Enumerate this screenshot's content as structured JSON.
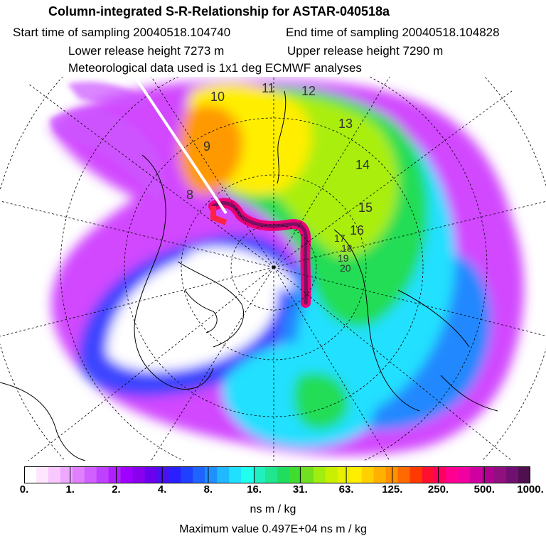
{
  "header": {
    "title": "Column-integrated S-R-Relationship for ASTAR-040518a",
    "start_time": "Start time of sampling 20040518.104740",
    "end_time": "End time of sampling 20040518.104828",
    "lower_release": "Lower release height 7273 m",
    "upper_release": "Upper release height 7290 m",
    "met_data": "Meteorological data used is 1x1 deg ECMWF analyses"
  },
  "map": {
    "trajectory_labels": [
      "8",
      "9",
      "10",
      "11",
      "12",
      "13",
      "14",
      "15",
      "16",
      "17",
      "18",
      "19",
      "20"
    ],
    "colors": {
      "white": "#ffffff",
      "violet": "#cc33ff",
      "purple": "#9900ff",
      "blue": "#2244ff",
      "cyan": "#22e0ff",
      "green": "#22dd55",
      "yellow": "#ffee00",
      "orange": "#ff9900",
      "red": "#ff2244",
      "magenta": "#ee0077",
      "dark_purple": "#7a1060"
    }
  },
  "colorbar": {
    "tick_labels": [
      "0.",
      "1.",
      "2.",
      "4.",
      "8.",
      "16.",
      "31.",
      "63.",
      "125.",
      "250.",
      "500.",
      "1000."
    ],
    "units": "ns m / kg",
    "colors": [
      "#ffffff",
      "#ffe6ff",
      "#f8c8ff",
      "#eea8ff",
      "#e080ff",
      "#d060ff",
      "#c040ff",
      "#b020ff",
      "#a000ff",
      "#8800ee",
      "#6a00ee",
      "#4a10f0",
      "#2a20ff",
      "#2040ff",
      "#2064ff",
      "#2090ff",
      "#20b8ff",
      "#20e0ff",
      "#20ffee",
      "#20f0c0",
      "#20e690",
      "#20dd60",
      "#40dd30",
      "#70e020",
      "#a0ee10",
      "#c8f000",
      "#e8f000",
      "#ffee00",
      "#ffd000",
      "#ffb000",
      "#ff9000",
      "#ff6a00",
      "#ff3a00",
      "#ff1030",
      "#ff0060",
      "#ff0090",
      "#f000a0",
      "#d000a0",
      "#b00090",
      "#901080",
      "#701070",
      "#501050"
    ]
  },
  "max_value": "Maximum value  0.497E+04 ns m / kg"
}
